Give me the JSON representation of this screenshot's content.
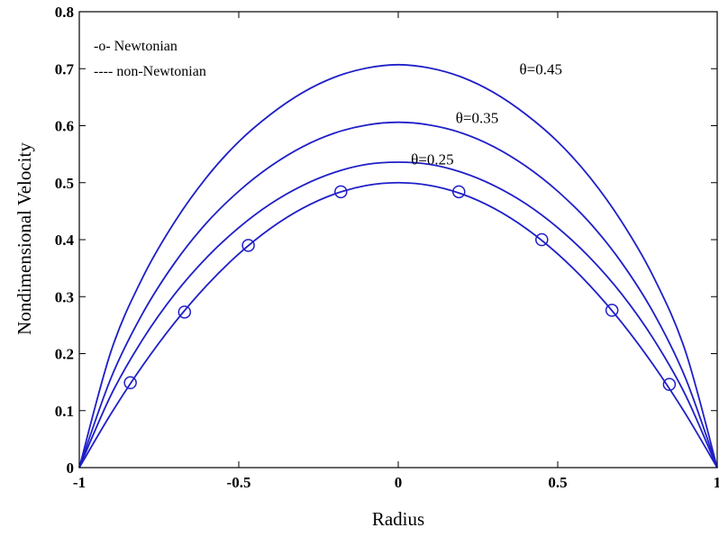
{
  "chart_data": {
    "type": "line",
    "title": "",
    "xlabel": "Radius",
    "ylabel": "Nondimensional Velocity",
    "xlim": [
      -1,
      1
    ],
    "ylim": [
      0,
      0.8
    ],
    "xticks": [
      -1,
      -0.5,
      0,
      0.5,
      1
    ],
    "xtick_labels": [
      "-1",
      "-0.5",
      "0",
      "0.5",
      "1"
    ],
    "yticks": [
      0,
      0.1,
      0.2,
      0.3,
      0.4,
      0.5,
      0.6,
      0.7,
      0.8
    ],
    "ytick_labels": [
      "0",
      "0.1",
      "0.2",
      "0.3",
      "0.4",
      "0.5",
      "0.6",
      "0.7",
      "0.8"
    ],
    "grid": false,
    "legend": {
      "placement": "top-left",
      "entries": [
        "-o- Newtonian",
        "---- non-Newtonian"
      ]
    },
    "line_color": "#1f1fc8",
    "series": [
      {
        "name": "Newtonian",
        "line_x": [
          -1,
          -0.9,
          -0.8,
          -0.7,
          -0.6,
          -0.5,
          -0.4,
          -0.3,
          -0.2,
          -0.1,
          0,
          0.1,
          0.2,
          0.3,
          0.4,
          0.5,
          0.6,
          0.7,
          0.8,
          0.9,
          1
        ],
        "line_y": [
          0,
          0.095,
          0.18,
          0.255,
          0.32,
          0.375,
          0.42,
          0.455,
          0.48,
          0.495,
          0.5,
          0.495,
          0.48,
          0.455,
          0.42,
          0.375,
          0.32,
          0.255,
          0.18,
          0.095,
          0
        ],
        "marker_x": [
          -0.84,
          -0.67,
          -0.47,
          -0.18,
          0.19,
          0.45,
          0.67,
          0.85
        ],
        "marker_y": [
          0.149,
          0.273,
          0.39,
          0.484,
          0.484,
          0.4,
          0.276,
          0.146
        ]
      },
      {
        "label": "θ=0.25",
        "x": [
          -1,
          -0.9,
          -0.8,
          -0.7,
          -0.6,
          -0.5,
          -0.4,
          -0.3,
          -0.2,
          -0.1,
          0,
          0.1,
          0.2,
          0.3,
          0.4,
          0.5,
          0.6,
          0.7,
          0.8,
          0.9,
          1
        ],
        "y": [
          0,
          0.128,
          0.226,
          0.305,
          0.369,
          0.421,
          0.463,
          0.495,
          0.518,
          0.532,
          0.536,
          0.532,
          0.518,
          0.495,
          0.463,
          0.421,
          0.369,
          0.305,
          0.226,
          0.128,
          0
        ]
      },
      {
        "label": "θ=0.35",
        "x": [
          -1,
          -0.9,
          -0.8,
          -0.7,
          -0.6,
          -0.5,
          -0.4,
          -0.3,
          -0.2,
          -0.1,
          0,
          0.1,
          0.2,
          0.3,
          0.4,
          0.5,
          0.6,
          0.7,
          0.8,
          0.9,
          1
        ],
        "y": [
          0,
          0.158,
          0.272,
          0.36,
          0.43,
          0.485,
          0.529,
          0.563,
          0.587,
          0.601,
          0.606,
          0.601,
          0.587,
          0.563,
          0.529,
          0.485,
          0.43,
          0.36,
          0.272,
          0.158,
          0
        ]
      },
      {
        "label": "θ=0.45",
        "x": [
          -1,
          -0.9,
          -0.8,
          -0.7,
          -0.6,
          -0.5,
          -0.4,
          -0.3,
          -0.2,
          -0.1,
          0,
          0.1,
          0.2,
          0.3,
          0.4,
          0.5,
          0.6,
          0.7,
          0.8,
          0.9,
          1
        ],
        "y": [
          0,
          0.205,
          0.335,
          0.432,
          0.51,
          0.572,
          0.62,
          0.658,
          0.685,
          0.701,
          0.707,
          0.701,
          0.685,
          0.658,
          0.62,
          0.572,
          0.51,
          0.432,
          0.335,
          0.205,
          0
        ]
      }
    ],
    "annotations": [
      {
        "text": "θ=0.45",
        "x": 0.38,
        "y": 0.69
      },
      {
        "text": "θ=0.35",
        "x": 0.18,
        "y": 0.605
      },
      {
        "text": "θ=0.25",
        "x": 0.04,
        "y": 0.532
      }
    ]
  }
}
